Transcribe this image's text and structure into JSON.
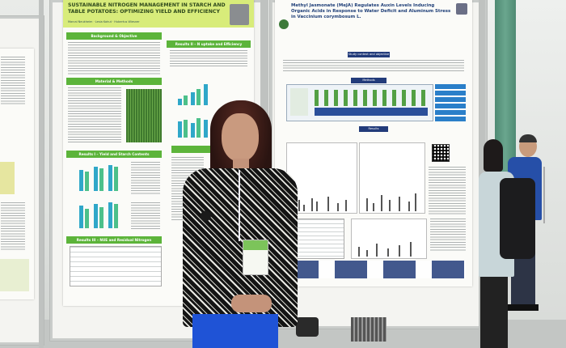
{
  "poster_left": {
    "title": "SUSTAINABLE NITROGEN MANAGEMENT IN STARCH AND TABLE POTATOES: OPTIMIZING YIELD AND EFFICIENCY",
    "authors": "Marcal Neukheim · Lesia Kohut · Hubertus Wiesner",
    "sections": [
      "Background & Objective",
      "Material & Methods",
      "Results I – Yield and Starch Contents",
      "Results II – N uptake and Efficiency",
      "Results III – NUE and Residual Nitrogen"
    ]
  },
  "poster_right": {
    "title": "Methyl Jasmonate (MeJA) Regulates Auxin Levels Inducing Organic Acids in Response to Water Deficit and Aluminum Stress in Vaccinium corymbosum L.",
    "bands": [
      "Study context and objective",
      "Methods",
      "Results"
    ]
  },
  "colors": {
    "poster_green": "#5cb43a",
    "poster_title_lime": "#d8ec7a",
    "poster_navy": "#223b7a",
    "pants_blue": "#1f53d6",
    "lanyard_badge_green": "#7cc45a"
  }
}
